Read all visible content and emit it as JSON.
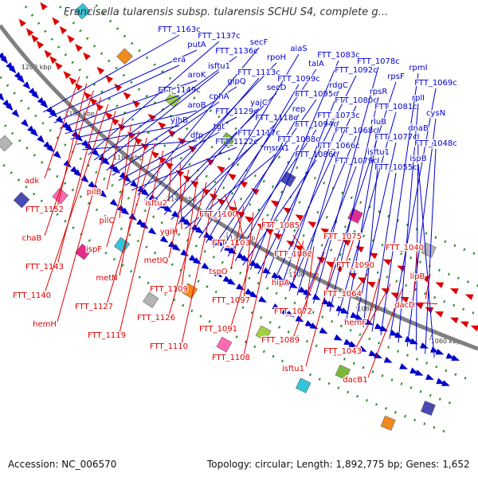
{
  "title": "Francisella tularensis subsp. tularensis SCHU S4, complete g...",
  "footer": {
    "accession": "Accession: NC_006570",
    "summary": "Topology: circular; Length: 1,892,775 bp; Genes: 1,652"
  },
  "colors": {
    "forward_genes": "#0000cc",
    "reverse_genes": "#dd0000",
    "backbone": "#808080",
    "rna_ticks": "#2e8b2e"
  },
  "ruler_ticks": [
    "1200 kbp",
    "1180 kbp",
    "1160 kbp",
    "1140 kbp",
    "1120 kbp",
    "1100 kbp",
    "1080 kbp",
    "1060 kbp"
  ],
  "forward_labels": [
    "FTT_1163c",
    "putA",
    "era",
    "aroK",
    "FTT_1149c",
    "aroB",
    "yjhB",
    "dfp",
    "FTT_1137c",
    "FTT_1136c",
    "isftu1",
    "glpQ",
    "cphA",
    "FTT_1129c",
    "tgt",
    "FTT_1122c",
    "secF",
    "rpoH",
    "FTT_1113c",
    "secD",
    "yajC",
    "FTT_1118c",
    "FTT_1117c",
    "msrA1",
    "aiaS",
    "talA",
    "FTT_1099c",
    "FTT_1095c",
    "rep",
    "FTT_1094c",
    "FTT_1088c",
    "FTT_1086c",
    "FTT_1083c",
    "FTT_1092c",
    "rdgC",
    "FTT_1080c",
    "FTT_1073c",
    "FTT_1068c",
    "FTT_1066c",
    "FTT_1079c",
    "FTT_1078c",
    "rpsF",
    "rpsR",
    "FTT_1081c",
    "rluB",
    "FTT_1077c",
    "isftu1",
    "FTT_1055c",
    "rpmI",
    "FTT_1069c",
    "rplI",
    "cysN",
    "dnaB",
    "FTT_1048c",
    "ispB"
  ],
  "reverse_labels": [
    "adk",
    "FTT_1152",
    "chaB",
    "FTT_1143",
    "FTT_1140",
    "hemH",
    "pilB",
    "pilC",
    "ispF",
    "metN",
    "FTT_1127",
    "FTT_1119",
    "isftu2",
    "ygiH",
    "metIQ",
    "FTT_1109",
    "FTT_1126",
    "FTT_1110",
    "FTT_1100",
    "FTT_1103",
    "tspO",
    "FTT_1097",
    "FTT_1091",
    "FTT_1108",
    "FTT_1085",
    "FTT_1082",
    "hipA",
    "FTT_1072",
    "FTT_1089",
    "isftu1",
    "FTT_1075",
    "FTT_1090",
    "FTT_1064",
    "hemF",
    "FTT_1043",
    "dacB1",
    "FTT_1040",
    "lipB",
    "dacD"
  ]
}
